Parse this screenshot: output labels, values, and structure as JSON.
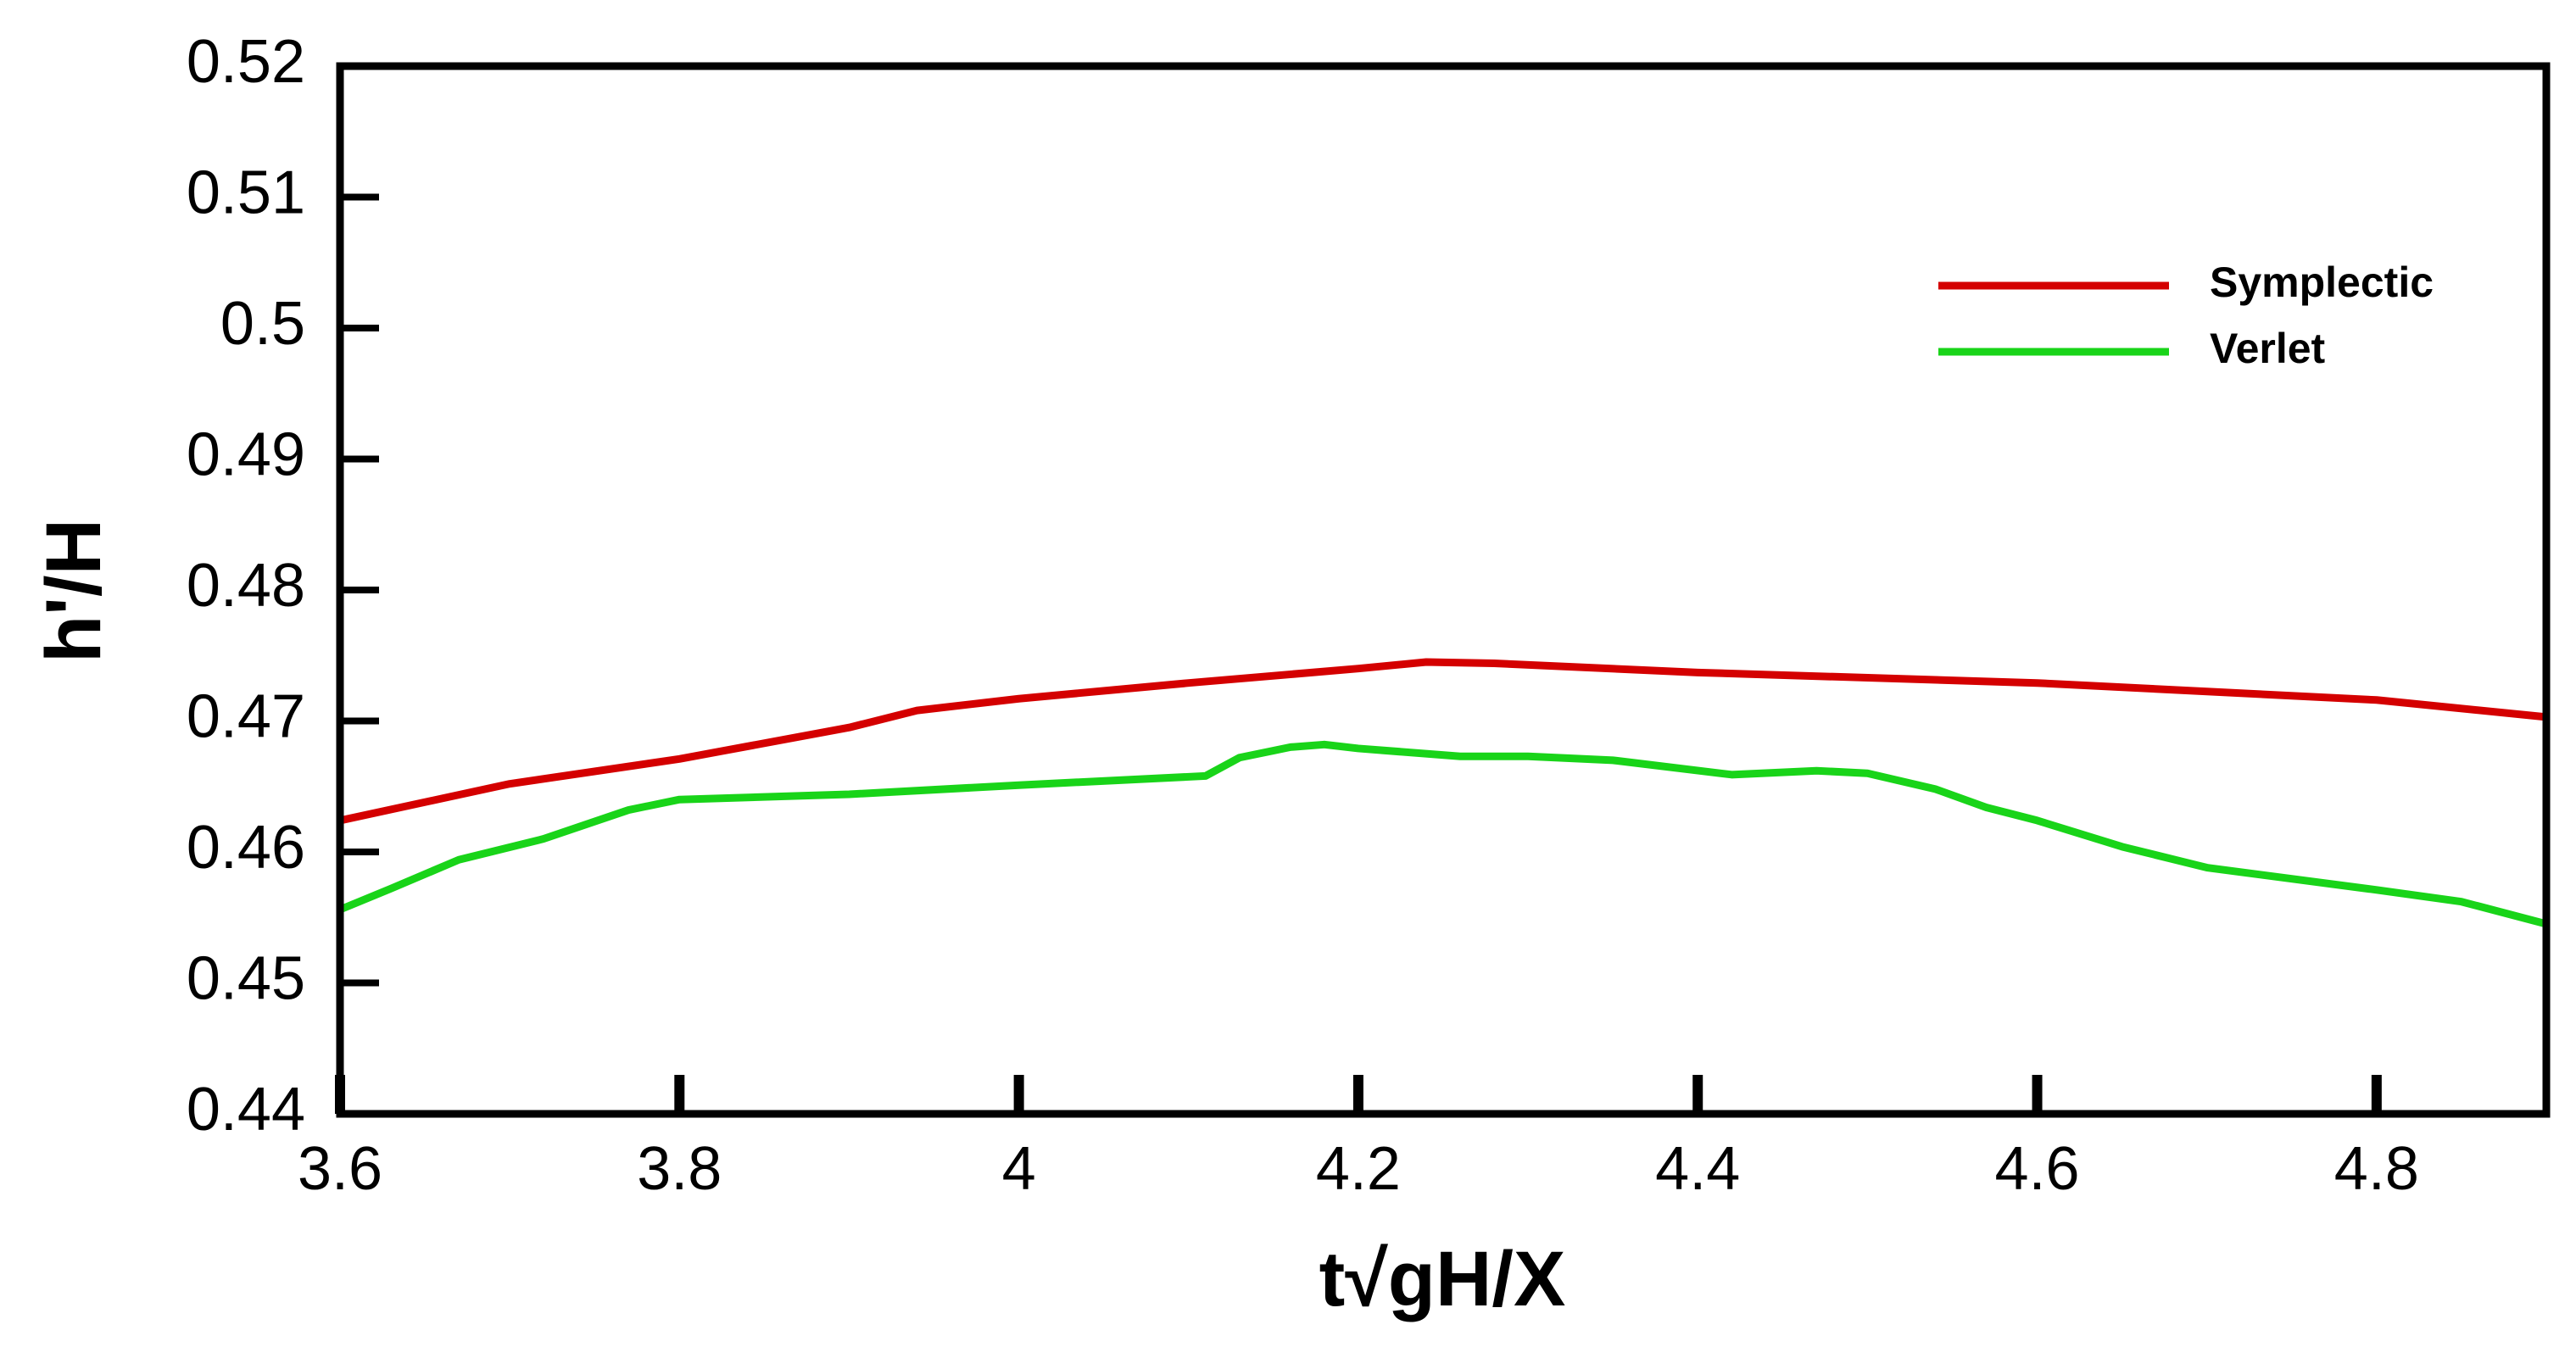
{
  "chart_data": {
    "type": "line",
    "x_label": "t√gH/X",
    "y_label": "h'/H",
    "xlim": [
      3.6,
      4.9
    ],
    "xticks": [
      3.6,
      3.8,
      4,
      4.2,
      4.4,
      4.6,
      4.8
    ],
    "ylim": [
      0.44,
      0.52
    ],
    "yticks": [
      0.44,
      0.45,
      0.46,
      0.47,
      0.48,
      0.49,
      0.5,
      0.51,
      0.52
    ],
    "legend": "upper-right",
    "series": [
      {
        "name": "Symplectic",
        "color": "#d40000",
        "x": [
          3.6,
          3.7,
          3.8,
          3.9,
          3.94,
          4.0,
          4.1,
          4.2,
          4.24,
          4.28,
          4.4,
          4.6,
          4.8,
          4.9
        ],
        "values": [
          0.4624,
          0.4652,
          0.4671,
          0.4695,
          0.4708,
          0.4717,
          0.4729,
          0.474,
          0.4745,
          0.4744,
          0.4737,
          0.4729,
          0.4716,
          0.4703
        ]
      },
      {
        "name": "Verlet",
        "color": "#19d419",
        "x": [
          3.6,
          3.63,
          3.67,
          3.72,
          3.77,
          3.8,
          3.9,
          4.0,
          4.11,
          4.13,
          4.16,
          4.18,
          4.2,
          4.26,
          4.3,
          4.35,
          4.42,
          4.47,
          4.5,
          4.54,
          4.57,
          4.6,
          4.65,
          4.7,
          4.8,
          4.85,
          4.9
        ],
        "values": [
          0.4556,
          0.4572,
          0.4594,
          0.461,
          0.4632,
          0.464,
          0.4644,
          0.4651,
          0.4658,
          0.4672,
          0.468,
          0.4682,
          0.4679,
          0.4673,
          0.4673,
          0.467,
          0.4659,
          0.4662,
          0.466,
          0.4648,
          0.4634,
          0.4624,
          0.4604,
          0.4588,
          0.4571,
          0.4562,
          0.4545
        ]
      }
    ]
  }
}
